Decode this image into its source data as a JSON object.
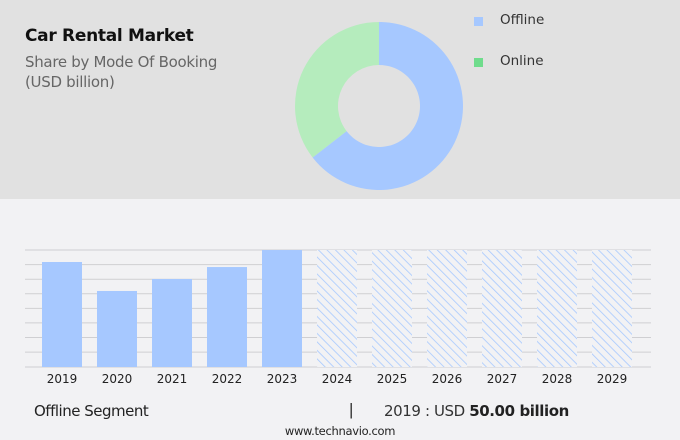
{
  "header": {
    "title": "Car Rental Market",
    "subtitle_line1": "Share by Mode Of Booking",
    "subtitle_line2": "(USD billion)"
  },
  "legend": [
    {
      "label": "Offline",
      "color": "#a6c8ff"
    },
    {
      "label": "Online",
      "color": "#6fdc8c"
    }
  ],
  "footer": {
    "segment": "Offline Segment",
    "separator": "|",
    "year_prefix": "2019 : USD ",
    "value": "50.00 billion",
    "url": "www.technavio.com"
  },
  "colors": {
    "offline": "#a6c8ff",
    "online": "#b5ecbd",
    "top_bg": "#e1e1e1",
    "bottom_bg": "#f2f2f4",
    "grid": "#cfcfd2"
  },
  "chart_data": [
    {
      "type": "pie",
      "title": "Car Rental Market - Share by Mode Of Booking (USD billion)",
      "donut": true,
      "labels": [
        "Offline",
        "Online"
      ],
      "values": [
        64.5,
        35.5
      ],
      "legend_position": "right"
    },
    {
      "type": "bar",
      "title": "Offline Segment",
      "categories": [
        "2019",
        "2020",
        "2021",
        "2022",
        "2023",
        "2024",
        "2025",
        "2026",
        "2027",
        "2028",
        "2029"
      ],
      "values": [
        50.0,
        36.2,
        41.9,
        47.6,
        55.7,
        null,
        null,
        null,
        null,
        null,
        null
      ],
      "forecast_categories": [
        "2024",
        "2025",
        "2026",
        "2027",
        "2028",
        "2029"
      ],
      "forecast_style": "hatched, full height",
      "xlabel": "",
      "ylabel": "USD billion",
      "grid": true,
      "annotation": "2019 : USD 50.00 billion"
    }
  ]
}
